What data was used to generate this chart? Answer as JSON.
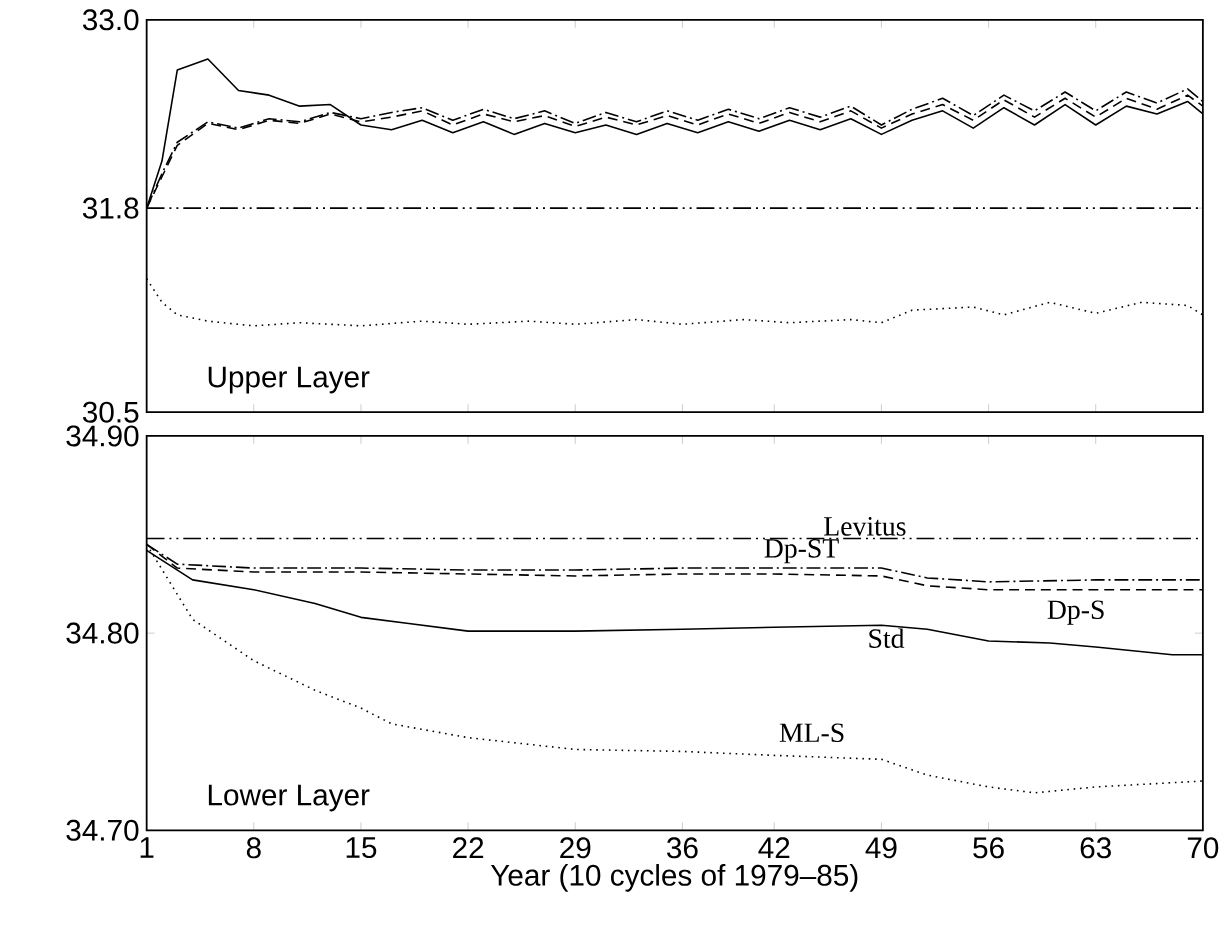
{
  "chart_data": [
    {
      "type": "line",
      "xlim": [
        1,
        70
      ],
      "xticks": [
        1,
        8,
        15,
        22,
        29,
        36,
        42,
        49,
        56,
        63,
        70
      ],
      "ylim": [
        30.5,
        33.0
      ],
      "yticks": [
        30.5,
        31.8,
        {
          "value": 33.0,
          "label": "33.0"
        }
      ],
      "tick_labels": "y",
      "annotations": [
        "Upper Layer"
      ],
      "series": [
        {
          "color": "#000000",
          "line_style": "solid",
          "x": [
            1,
            2,
            3,
            5,
            7,
            9,
            11,
            13,
            15,
            17,
            19,
            21,
            23,
            25,
            27,
            29,
            31,
            33,
            35,
            37,
            39,
            41,
            43,
            45,
            47,
            49,
            51,
            53,
            55,
            57,
            59,
            61,
            63,
            65,
            67,
            69,
            70
          ],
          "values": [
            31.8,
            32.1,
            32.68,
            32.75,
            32.55,
            32.52,
            32.45,
            32.46,
            32.33,
            32.3,
            32.36,
            32.28,
            32.35,
            32.27,
            32.34,
            32.28,
            32.33,
            32.27,
            32.34,
            32.28,
            32.35,
            32.29,
            32.36,
            32.3,
            32.37,
            32.27,
            32.36,
            32.42,
            32.31,
            32.44,
            32.33,
            32.46,
            32.33,
            32.45,
            32.4,
            32.48,
            32.4
          ]
        },
        {
          "color": "#000000",
          "line_style": "dashed",
          "x": [
            1,
            2,
            3,
            5,
            7,
            9,
            11,
            13,
            15,
            17,
            19,
            21,
            23,
            25,
            27,
            29,
            31,
            33,
            35,
            37,
            39,
            41,
            43,
            45,
            47,
            49,
            51,
            53,
            55,
            57,
            59,
            61,
            63,
            65,
            67,
            69,
            70
          ],
          "values": [
            31.8,
            32.0,
            32.2,
            32.34,
            32.3,
            32.36,
            32.34,
            32.4,
            32.35,
            32.38,
            32.42,
            32.33,
            32.4,
            32.35,
            32.39,
            32.32,
            32.38,
            32.33,
            32.39,
            32.33,
            32.4,
            32.34,
            32.41,
            32.35,
            32.42,
            32.31,
            32.4,
            32.46,
            32.36,
            32.49,
            32.38,
            32.5,
            32.38,
            32.5,
            32.43,
            32.52,
            32.45
          ]
        },
        {
          "color": "#000000",
          "line_style": "dashdot",
          "x": [
            1,
            2,
            3,
            5,
            7,
            9,
            11,
            13,
            15,
            17,
            19,
            21,
            23,
            25,
            27,
            29,
            31,
            33,
            35,
            37,
            39,
            41,
            43,
            45,
            47,
            49,
            51,
            53,
            55,
            57,
            59,
            61,
            63,
            65,
            67,
            69,
            70
          ],
          "values": [
            31.8,
            32.02,
            32.22,
            32.35,
            32.31,
            32.37,
            32.35,
            32.41,
            32.37,
            32.41,
            32.44,
            32.36,
            32.43,
            32.37,
            32.42,
            32.34,
            32.41,
            32.35,
            32.42,
            32.36,
            32.43,
            32.37,
            32.44,
            32.38,
            32.45,
            32.33,
            32.43,
            32.5,
            32.39,
            32.52,
            32.42,
            32.54,
            32.42,
            32.54,
            32.47,
            32.56,
            32.48
          ]
        },
        {
          "color": "#000000",
          "line_style": "dotted",
          "x": [
            1,
            2,
            3,
            5,
            8,
            11,
            15,
            19,
            22,
            26,
            29,
            33,
            36,
            40,
            43,
            47,
            49,
            51,
            55,
            57,
            60,
            63,
            66,
            69,
            70
          ],
          "values": [
            31.35,
            31.2,
            31.12,
            31.08,
            31.05,
            31.07,
            31.05,
            31.08,
            31.06,
            31.08,
            31.06,
            31.09,
            31.06,
            31.09,
            31.07,
            31.09,
            31.07,
            31.15,
            31.17,
            31.12,
            31.2,
            31.13,
            31.2,
            31.18,
            31.12
          ]
        },
        {
          "color": "#000000",
          "line_style": "dashdotdotted",
          "x": [
            1,
            70
          ],
          "values": [
            31.8,
            31.8
          ]
        }
      ]
    },
    {
      "type": "line",
      "xlabel": "Year (10 cycles of 1979–85)",
      "xlim": [
        1,
        70
      ],
      "xticks": [
        1,
        8,
        15,
        22,
        29,
        36,
        42,
        49,
        56,
        63,
        70
      ],
      "ylim": [
        34.7,
        34.9
      ],
      "yticks": [
        {
          "value": 34.7,
          "label": "34.70"
        },
        {
          "value": 34.8,
          "label": "34.80"
        },
        {
          "value": 34.9,
          "label": "34.90"
        }
      ],
      "annotations": [
        "Lower Layer"
      ],
      "series": [
        {
          "name": "Std",
          "color": "#000000",
          "line_style": "solid",
          "x": [
            1,
            4,
            8,
            12,
            15,
            18,
            22,
            29,
            36,
            42,
            49,
            52,
            56,
            60,
            63,
            68,
            70
          ],
          "values": [
            34.842,
            34.827,
            34.822,
            34.815,
            34.808,
            34.805,
            34.801,
            34.801,
            34.802,
            34.803,
            34.804,
            34.802,
            34.796,
            34.795,
            34.793,
            34.789,
            34.789
          ]
        },
        {
          "name": "Dp-S",
          "color": "#000000",
          "line_style": "dashed",
          "x": [
            1,
            3,
            8,
            15,
            22,
            29,
            36,
            42,
            49,
            52,
            56,
            63,
            70
          ],
          "values": [
            34.845,
            34.833,
            34.831,
            34.831,
            34.83,
            34.829,
            34.83,
            34.83,
            34.829,
            34.824,
            34.822,
            34.822,
            34.822
          ]
        },
        {
          "name": "Dp-ST",
          "color": "#000000",
          "line_style": "dashdot",
          "x": [
            1,
            3,
            8,
            15,
            22,
            29,
            36,
            42,
            49,
            52,
            56,
            63,
            70
          ],
          "values": [
            34.845,
            34.835,
            34.833,
            34.833,
            34.832,
            34.832,
            34.833,
            34.833,
            34.833,
            34.828,
            34.826,
            34.827,
            34.827
          ]
        },
        {
          "name": "ML-S",
          "color": "#000000",
          "line_style": "dotted",
          "x": [
            1,
            4,
            8,
            12,
            15,
            17,
            22,
            29,
            36,
            42,
            49,
            52,
            56,
            59,
            63,
            70
          ],
          "values": [
            34.845,
            34.807,
            34.786,
            34.771,
            34.762,
            34.754,
            34.747,
            34.741,
            34.74,
            34.738,
            34.736,
            34.728,
            34.722,
            34.719,
            34.722,
            34.725
          ]
        },
        {
          "name": "Levitus",
          "color": "#000000",
          "line_style": "dashdotdotted",
          "x": [
            1,
            70
          ],
          "values": [
            34.848,
            34.848
          ]
        }
      ]
    }
  ]
}
